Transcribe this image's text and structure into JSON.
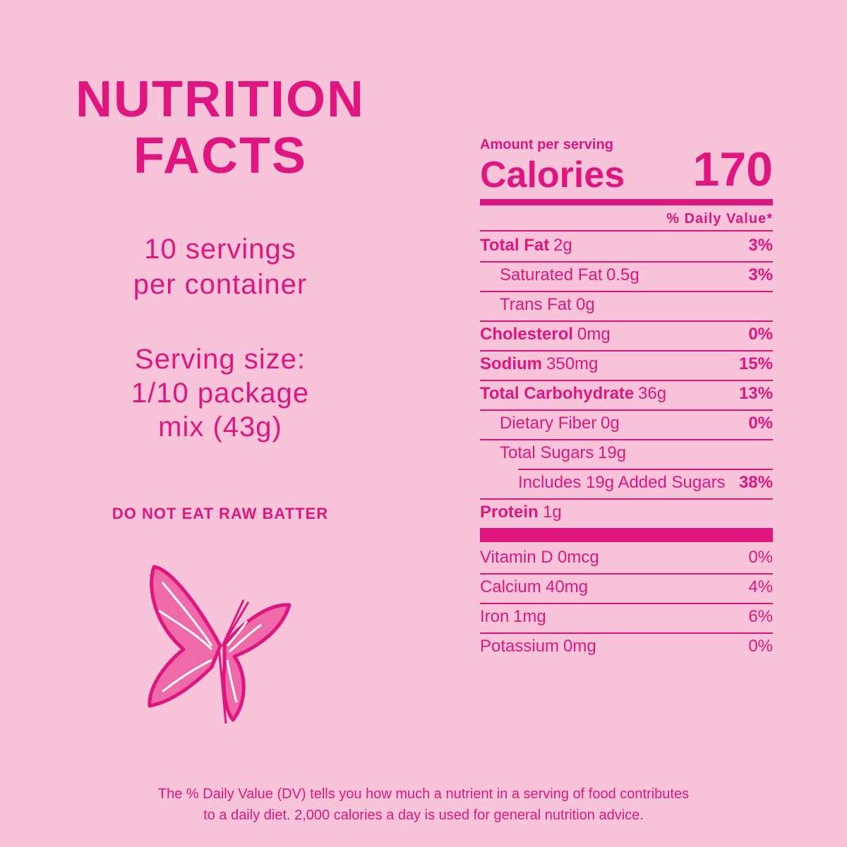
{
  "left": {
    "title": [
      "NUTRITION",
      "FACTS"
    ],
    "servings": [
      "10 servings",
      "per container"
    ],
    "serving_size": [
      "Serving size:",
      "1/10 package",
      "mix (43g)"
    ],
    "warning": "DO NOT EAT RAW BATTER"
  },
  "label": {
    "amount_per_serving": "Amount per serving",
    "calories_label": "Calories",
    "calories": "170",
    "daily_value_header": "% Daily Value*",
    "rows": [
      {
        "name": "Total Fat",
        "amount": "2g",
        "dv": "3%"
      },
      {
        "name": "Saturated Fat",
        "amount": "0.5g",
        "dv": "3%"
      },
      {
        "name": "Trans Fat",
        "amount": "0g"
      },
      {
        "name": "Cholesterol",
        "amount": "0mg",
        "dv": "0%"
      },
      {
        "name": "Sodium",
        "amount": "350mg",
        "dv": "15%"
      },
      {
        "name": "Total Carbohydrate",
        "amount": "36g",
        "dv": "13%"
      },
      {
        "name": "Dietary Fiber",
        "amount": "0g",
        "dv": "0%"
      },
      {
        "name": "Total Sugars",
        "amount": "19g"
      },
      {
        "name": "Includes 19g Added Sugars",
        "dv": "38%"
      },
      {
        "name": "Protein",
        "amount": "1g"
      }
    ],
    "micros": [
      {
        "name": "Vitamin D",
        "amount": "0mcg",
        "dv": "0%"
      },
      {
        "name": "Calcium",
        "amount": "40mg",
        "dv": "4%"
      },
      {
        "name": "Iron",
        "amount": "1mg",
        "dv": "6%"
      },
      {
        "name": "Potassium",
        "amount": "0mg",
        "dv": "0%"
      }
    ]
  },
  "footer": [
    "The % Daily Value (DV) tells you how much a nutrient in a serving of food contributes",
    "to a daily diet. 2,000 calories a day is used for general nutrition advice."
  ]
}
